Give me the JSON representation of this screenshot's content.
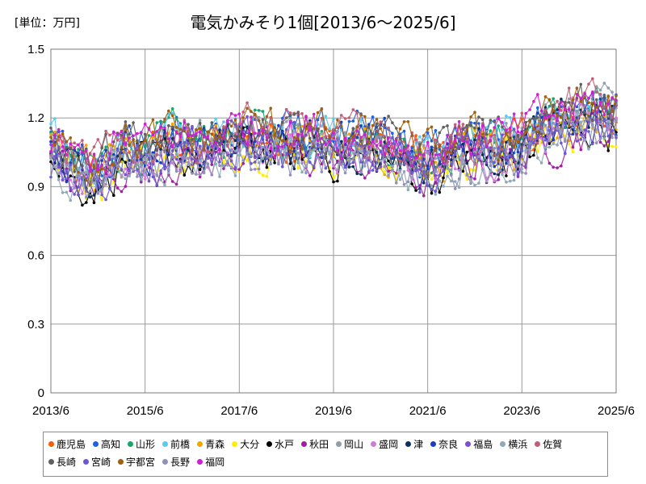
{
  "unit_label": "[単位：万円]",
  "chart_data": {
    "type": "line",
    "title": "電気かみそり1個[2013/6～2025/6]",
    "xlabel": "",
    "ylabel": "",
    "ylim": [
      0,
      1.5
    ],
    "yticks": [
      "0",
      "0.3",
      "0.6",
      "0.9",
      "1.2",
      "1.5"
    ],
    "xticks": [
      "2013/6",
      "2015/6",
      "2017/6",
      "2019/6",
      "2021/6",
      "2023/6",
      "2025/6"
    ],
    "x_range": [
      "2013/6",
      "2025/6"
    ],
    "grid": true,
    "legend_position": "bottom",
    "series": [
      {
        "name": "鹿児島",
        "color": "#ff5a00"
      },
      {
        "name": "高知",
        "color": "#1f5fe0"
      },
      {
        "name": "山形",
        "color": "#12a86b"
      },
      {
        "name": "前橋",
        "color": "#5ec8f0"
      },
      {
        "name": "青森",
        "color": "#f0a800"
      },
      {
        "name": "大分",
        "color": "#ffee00"
      },
      {
        "name": "水戸",
        "color": "#000000"
      },
      {
        "name": "秋田",
        "color": "#a01fa0"
      },
      {
        "name": "岡山",
        "color": "#8f9ea8"
      },
      {
        "name": "盛岡",
        "color": "#d07ad8"
      },
      {
        "name": "津",
        "color": "#0b2f5e"
      },
      {
        "name": "奈良",
        "color": "#1a3fb8"
      },
      {
        "name": "福島",
        "color": "#7b4fd0"
      },
      {
        "name": "横浜",
        "color": "#90a8b8"
      },
      {
        "name": "佐賀",
        "color": "#c06078"
      },
      {
        "name": "長崎",
        "color": "#606060"
      },
      {
        "name": "宮崎",
        "color": "#6a5acd"
      },
      {
        "name": "宇都宮",
        "color": "#a06010"
      },
      {
        "name": "長野",
        "color": "#9090b8"
      },
      {
        "name": "福岡",
        "color": "#d01fd0"
      }
    ],
    "anchor_x": [
      2013.42,
      2014.0,
      2014.5,
      2015.0,
      2015.42,
      2016.0,
      2016.5,
      2017.0,
      2017.5,
      2018.0,
      2018.5,
      2019.0,
      2019.5,
      2020.0,
      2020.5,
      2021.0,
      2021.42,
      2021.75,
      2022.25,
      2022.75,
      2023.25,
      2023.75,
      2024.25,
      2024.75,
      2025.42
    ],
    "anchor_y": [
      1.05,
      0.95,
      0.97,
      1.05,
      1.02,
      1.08,
      1.05,
      1.07,
      1.12,
      1.1,
      1.08,
      1.09,
      1.07,
      1.06,
      1.06,
      1.02,
      0.98,
      1.02,
      1.06,
      1.05,
      1.06,
      1.13,
      1.17,
      1.2,
      1.2
    ]
  }
}
